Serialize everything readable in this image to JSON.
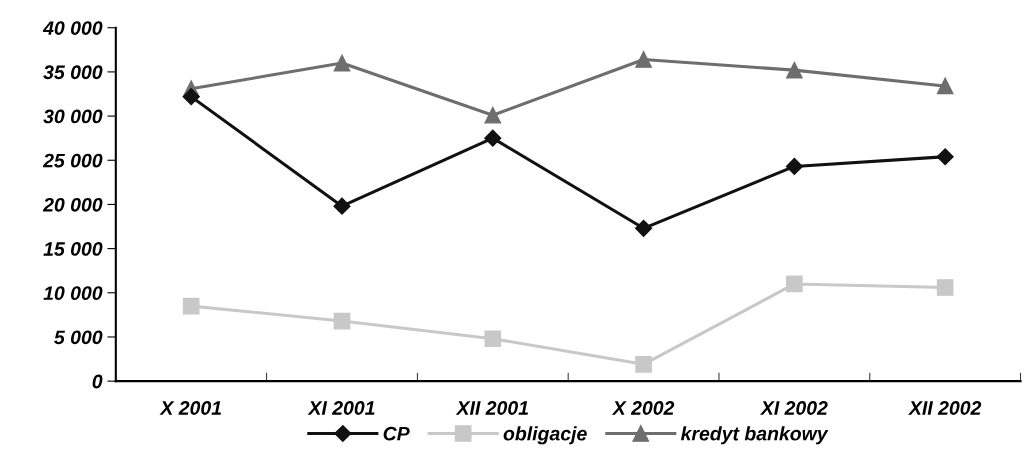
{
  "chart_data": {
    "type": "line",
    "categories": [
      "X 2001",
      "XI 2001",
      "XII 2001",
      "X 2002",
      "XI 2002",
      "XII 2002"
    ],
    "series": [
      {
        "name": "CP",
        "color": "#111111",
        "marker": "diamond",
        "values": [
          32200,
          19800,
          27500,
          17300,
          24300,
          25400
        ]
      },
      {
        "name": "obligacje",
        "color": "#c8c8c8",
        "marker": "square",
        "values": [
          8500,
          6800,
          4800,
          1900,
          11000,
          10600
        ]
      },
      {
        "name": "kredyt bankowy",
        "color": "#6e6e6e",
        "marker": "triangle",
        "values": [
          33100,
          36000,
          30100,
          36400,
          35200,
          33400
        ]
      }
    ],
    "ylim": [
      0,
      40000
    ],
    "yticks": [
      {
        "value": 0,
        "label": "0"
      },
      {
        "value": 5000,
        "label": "5 000"
      },
      {
        "value": 10000,
        "label": "10 000"
      },
      {
        "value": 15000,
        "label": "15 000"
      },
      {
        "value": 20000,
        "label": "20 000"
      },
      {
        "value": 25000,
        "label": "25 000"
      },
      {
        "value": 30000,
        "label": "30 000"
      },
      {
        "value": 35000,
        "label": "35 000"
      },
      {
        "value": 40000,
        "label": "40 000"
      }
    ],
    "grid": false,
    "legend": "bottom",
    "line_style": "solid"
  }
}
